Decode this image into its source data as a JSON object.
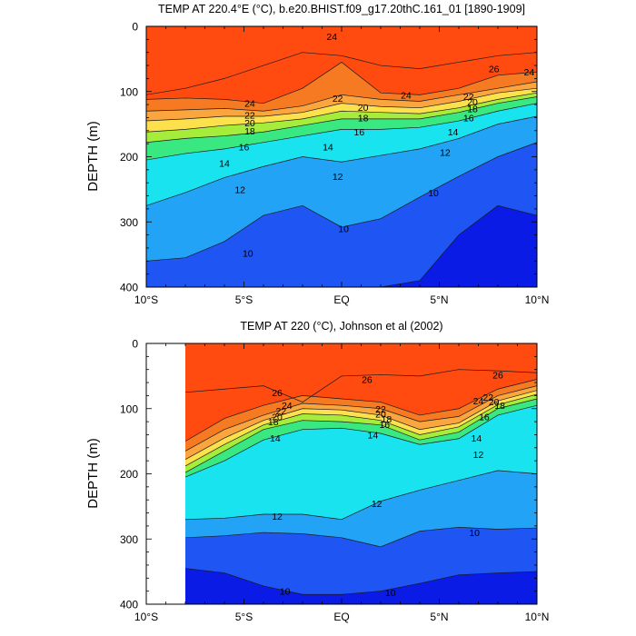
{
  "colors": {
    "levels": [
      "#0a1be6",
      "#1f55f2",
      "#2e77f7",
      "#22a3f5",
      "#19c8f2",
      "#19e3ee",
      "#22f0c8",
      "#3ae882",
      "#14d24c",
      "#a6ec3a",
      "#fbfa42",
      "#fde14c",
      "#fdc24a",
      "#fba53e",
      "#f8912e",
      "#f57a22",
      "#ef5f16",
      "#ff4a10"
    ]
  },
  "chart_data": [
    {
      "type": "contour",
      "title": "TEMP AT 220.4°E (°C), b.e20.BHIST.f09_g17.20thC.161_01 [1890-1909]",
      "ylabel": "DEPTH (m)",
      "xlabel": "",
      "x_ticks": [
        "10°S",
        "5°S",
        "EQ",
        "5°N",
        "10°N"
      ],
      "x_tick_values": [
        -10,
        -5,
        0,
        5,
        10
      ],
      "y_ticks": [
        "0",
        "100",
        "200",
        "300",
        "400"
      ],
      "y_tick_values": [
        0,
        100,
        200,
        300,
        400
      ],
      "xlim": [
        -10,
        10
      ],
      "ylim": [
        400,
        0
      ],
      "x_data_range": [
        -10,
        10
      ],
      "contour_interval": 1,
      "x": [
        -10,
        -8,
        -6,
        -4,
        -2,
        0,
        2,
        4,
        6,
        8,
        10
      ],
      "isotherm_depths": [
        {
          "t": 26,
          "depth": [
            105,
            95,
            80,
            60,
            40,
            45,
            60,
            65,
            55,
            45,
            40
          ]
        },
        {
          "t": 24,
          "depth": [
            112,
            110,
            112,
            118,
            95,
            55,
            102,
            105,
            95,
            75,
            70
          ]
        },
        {
          "t": 22,
          "depth": [
            130,
            128,
            126,
            130,
            122,
            105,
            112,
            115,
            105,
            95,
            85
          ]
        },
        {
          "t": 20,
          "depth": [
            145,
            142,
            138,
            138,
            132,
            118,
            123,
            125,
            115,
            102,
            95
          ]
        },
        {
          "t": 18,
          "depth": [
            162,
            158,
            152,
            148,
            142,
            130,
            132,
            134,
            125,
            112,
            102
          ]
        },
        {
          "t": 16,
          "depth": [
            178,
            172,
            168,
            162,
            152,
            142,
            142,
            142,
            132,
            118,
            108
          ]
        },
        {
          "t": 14,
          "depth": [
            205,
            195,
            188,
            178,
            168,
            158,
            158,
            155,
            145,
            130,
            118
          ]
        },
        {
          "t": 12,
          "depth": [
            275,
            255,
            232,
            215,
            200,
            208,
            198,
            188,
            172,
            150,
            138
          ]
        },
        {
          "t": 10,
          "depth": [
            360,
            355,
            330,
            290,
            275,
            308,
            295,
            262,
            230,
            200,
            178
          ]
        },
        {
          "t": 8,
          "depth": [
            400,
            400,
            400,
            400,
            400,
            400,
            400,
            390,
            320,
            275,
            290
          ]
        }
      ],
      "labels": [
        {
          "t": 24,
          "x": -0.5,
          "d": 15
        },
        {
          "t": 24,
          "x": 3.3,
          "d": 105
        },
        {
          "t": 24,
          "x": -4.7,
          "d": 118
        },
        {
          "t": 24,
          "x": 9.6,
          "d": 70
        },
        {
          "t": 26,
          "x": 7.8,
          "d": 65
        },
        {
          "t": 22,
          "x": -0.2,
          "d": 110
        },
        {
          "t": 22,
          "x": -4.7,
          "d": 136
        },
        {
          "t": 22,
          "x": 6.5,
          "d": 107
        },
        {
          "t": 20,
          "x": 1.1,
          "d": 124
        },
        {
          "t": 20,
          "x": -4.7,
          "d": 148
        },
        {
          "t": 20,
          "x": 6.7,
          "d": 116
        },
        {
          "t": 18,
          "x": 1.1,
          "d": 140
        },
        {
          "t": 18,
          "x": -4.7,
          "d": 160
        },
        {
          "t": 18,
          "x": 6.7,
          "d": 126
        },
        {
          "t": 16,
          "x": 0.9,
          "d": 162
        },
        {
          "t": 16,
          "x": -5.0,
          "d": 185
        },
        {
          "t": 16,
          "x": 6.5,
          "d": 140
        },
        {
          "t": 14,
          "x": -0.7,
          "d": 185
        },
        {
          "t": 14,
          "x": -6.0,
          "d": 210
        },
        {
          "t": 14,
          "x": 5.7,
          "d": 162
        },
        {
          "t": 12,
          "x": -0.2,
          "d": 230
        },
        {
          "t": 12,
          "x": -5.2,
          "d": 250
        },
        {
          "t": 12,
          "x": 5.3,
          "d": 193
        },
        {
          "t": 10,
          "x": 0.1,
          "d": 310
        },
        {
          "t": 10,
          "x": -4.8,
          "d": 348
        },
        {
          "t": 10,
          "x": 4.7,
          "d": 255
        }
      ]
    },
    {
      "type": "contour",
      "title": "TEMP AT 220 (°C), Johnson et al (2002)",
      "ylabel": "DEPTH (m)",
      "xlabel": "",
      "x_ticks": [
        "10°S",
        "5°S",
        "EQ",
        "5°N",
        "10°N"
      ],
      "x_tick_values": [
        -10,
        -5,
        0,
        5,
        10
      ],
      "y_ticks": [
        "0",
        "100",
        "200",
        "300",
        "400"
      ],
      "y_tick_values": [
        0,
        100,
        200,
        300,
        400
      ],
      "xlim": [
        -10,
        10
      ],
      "ylim": [
        400,
        0
      ],
      "x_data_range": [
        -8,
        10
      ],
      "contour_interval": 1,
      "x": [
        -8,
        -6,
        -4,
        -2,
        0,
        2,
        4,
        6,
        8,
        10
      ],
      "isotherm_depths": [
        {
          "t": 26,
          "depth": [
            75,
            70,
            65,
            90,
            50,
            48,
            50,
            40,
            42,
            45
          ]
        },
        {
          "t": 24,
          "depth": [
            150,
            115,
            95,
            80,
            85,
            90,
            110,
            100,
            70,
            55
          ]
        },
        {
          "t": 22,
          "depth": [
            165,
            132,
            110,
            92,
            95,
            100,
            120,
            112,
            80,
            65
          ]
        },
        {
          "t": 20,
          "depth": [
            178,
            145,
            118,
            100,
            102,
            110,
            132,
            122,
            88,
            72
          ]
        },
        {
          "t": 18,
          "depth": [
            188,
            155,
            125,
            108,
            110,
            118,
            140,
            128,
            94,
            78
          ]
        },
        {
          "t": 16,
          "depth": [
            198,
            165,
            132,
            118,
            120,
            125,
            148,
            136,
            100,
            85
          ]
        },
        {
          "t": 14,
          "depth": [
            205,
            180,
            148,
            132,
            130,
            138,
            155,
            146,
            110,
            95
          ]
        },
        {
          "t": 12,
          "depth": [
            270,
            268,
            262,
            262,
            270,
            242,
            225,
            210,
            195,
            200
          ]
        },
        {
          "t": 10,
          "depth": [
            298,
            295,
            290,
            292,
            298,
            312,
            288,
            282,
            285,
            283
          ]
        },
        {
          "t": 8,
          "depth": [
            345,
            352,
            372,
            385,
            385,
            380,
            368,
            355,
            352,
            350
          ]
        }
      ],
      "labels": [
        {
          "t": 26,
          "x": 1.3,
          "d": 55
        },
        {
          "t": 26,
          "x": -3.3,
          "d": 75
        },
        {
          "t": 26,
          "x": 8.0,
          "d": 48
        },
        {
          "t": 24,
          "x": -2.8,
          "d": 95
        },
        {
          "t": 24,
          "x": 7.0,
          "d": 88
        },
        {
          "t": 22,
          "x": -3.1,
          "d": 103
        },
        {
          "t": 22,
          "x": 2.0,
          "d": 100
        },
        {
          "t": 22,
          "x": 7.5,
          "d": 82
        },
        {
          "t": 20,
          "x": -3.3,
          "d": 112
        },
        {
          "t": 20,
          "x": 2.0,
          "d": 108
        },
        {
          "t": 20,
          "x": 7.8,
          "d": 89
        },
        {
          "t": 18,
          "x": -3.5,
          "d": 120
        },
        {
          "t": 18,
          "x": 2.3,
          "d": 116
        },
        {
          "t": 18,
          "x": 8.1,
          "d": 95
        },
        {
          "t": 16,
          "x": 2.2,
          "d": 124
        },
        {
          "t": 16,
          "x": 7.3,
          "d": 112
        },
        {
          "t": 14,
          "x": -3.4,
          "d": 145
        },
        {
          "t": 14,
          "x": 1.6,
          "d": 140
        },
        {
          "t": 14,
          "x": 6.9,
          "d": 145
        },
        {
          "t": 12,
          "x": -3.3,
          "d": 265
        },
        {
          "t": 12,
          "x": 1.8,
          "d": 245
        },
        {
          "t": 12,
          "x": 7.0,
          "d": 170
        },
        {
          "t": 10,
          "x": -2.9,
          "d": 380
        },
        {
          "t": 10,
          "x": 2.5,
          "d": 382
        },
        {
          "t": 10,
          "x": 6.8,
          "d": 290
        }
      ]
    }
  ]
}
